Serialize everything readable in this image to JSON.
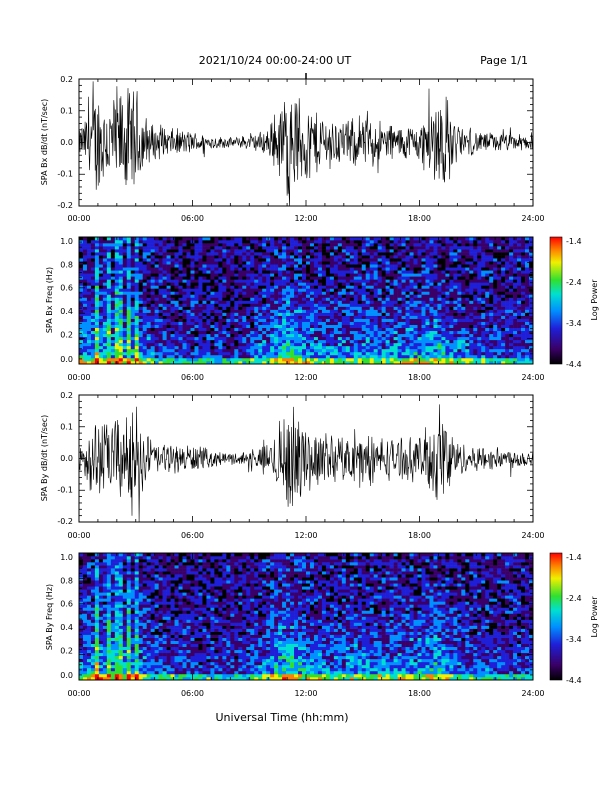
{
  "header": {
    "date_range": "2021/10/24  00:00-24:00 UT",
    "page": "Page 1/1"
  },
  "x_axis_title": "Universal Time (hh:mm)",
  "colors": {
    "trace": "#000000",
    "colormap": [
      "#000000",
      "#3a0068",
      "#1f1fd8",
      "#0090ff",
      "#00e0d0",
      "#30e030",
      "#f0f000",
      "#ff8000",
      "#ff0000"
    ]
  },
  "chart_data": [
    {
      "type": "line",
      "ylabel": "SPA Bx dB/dt (nT/sec)",
      "xlim_hours": [
        0,
        24
      ],
      "ylim": [
        -0.2,
        0.2
      ],
      "x_tick_labels": [
        "00:00",
        "06:00",
        "12:00",
        "18:00",
        "24:00"
      ],
      "y_tick_labels": [
        "0.2",
        "0.1",
        "0.0",
        "-0.1",
        "-0.2"
      ],
      "envelope": {
        "hours": [
          0,
          0.5,
          1,
          1.5,
          2,
          2.5,
          3,
          3.5,
          4,
          5,
          6,
          7,
          8,
          9,
          10,
          10.5,
          11,
          11.5,
          12,
          13,
          14,
          15,
          16,
          17,
          18,
          18.5,
          19,
          19.5,
          20,
          21,
          22,
          23,
          24
        ],
        "amplitude": [
          0.04,
          0.12,
          0.2,
          0.16,
          0.2,
          0.19,
          0.2,
          0.1,
          0.06,
          0.05,
          0.04,
          0.025,
          0.018,
          0.025,
          0.05,
          0.12,
          0.2,
          0.18,
          0.14,
          0.1,
          0.08,
          0.09,
          0.08,
          0.06,
          0.07,
          0.12,
          0.2,
          0.16,
          0.06,
          0.04,
          0.035,
          0.03,
          0.03
        ]
      }
    },
    {
      "type": "heatmap",
      "ylabel": "SPA Bx Freq (Hz)",
      "xlim_hours": [
        0,
        24
      ],
      "ylim": [
        0.0,
        1.0
      ],
      "x_tick_labels": [
        "00:00",
        "06:00",
        "12:00",
        "18:00",
        "24:00"
      ],
      "y_tick_labels": [
        "1.0",
        "0.8",
        "0.6",
        "0.4",
        "0.2",
        "0.0"
      ],
      "colorbar": {
        "label": "Log Power",
        "range": [
          -4.4,
          -1.4
        ],
        "tick_labels": [
          "-1.4",
          "-2.4",
          "-3.4",
          "-4.4"
        ]
      },
      "activity": {
        "hours": [
          0,
          1,
          2,
          3,
          4,
          6,
          8,
          9,
          10,
          11,
          12,
          13,
          14,
          15,
          16,
          17,
          18,
          19,
          20,
          22,
          24
        ],
        "level": [
          0.55,
          0.7,
          0.65,
          0.6,
          0.35,
          0.25,
          0.2,
          0.3,
          0.55,
          0.85,
          0.6,
          0.45,
          0.5,
          0.55,
          0.5,
          0.55,
          0.6,
          0.7,
          0.45,
          0.3,
          0.25
        ]
      }
    },
    {
      "type": "line",
      "ylabel": "SPA By dB/dt (nT/sec)",
      "xlim_hours": [
        0,
        24
      ],
      "ylim": [
        -0.2,
        0.2
      ],
      "x_tick_labels": [
        "00:00",
        "06:00",
        "12:00",
        "18:00",
        "24:00"
      ],
      "y_tick_labels": [
        "0.2",
        "0.1",
        "0.0",
        "-0.1",
        "-0.2"
      ],
      "envelope": {
        "hours": [
          0,
          0.5,
          1,
          1.5,
          2,
          2.5,
          3,
          3.5,
          4,
          5,
          6,
          7,
          8,
          9,
          10,
          10.5,
          11,
          11.5,
          12,
          13,
          14,
          15,
          16,
          17,
          18,
          18.5,
          19,
          19.5,
          20,
          21,
          22,
          23,
          24
        ],
        "amplitude": [
          0.06,
          0.1,
          0.16,
          0.12,
          0.17,
          0.14,
          0.2,
          0.1,
          0.06,
          0.05,
          0.05,
          0.03,
          0.02,
          0.03,
          0.05,
          0.12,
          0.2,
          0.16,
          0.12,
          0.09,
          0.08,
          0.09,
          0.08,
          0.07,
          0.08,
          0.12,
          0.18,
          0.15,
          0.06,
          0.045,
          0.04,
          0.035,
          0.03
        ]
      }
    },
    {
      "type": "heatmap",
      "ylabel": "SPA By Freq (Hz)",
      "xlim_hours": [
        0,
        24
      ],
      "ylim": [
        0.0,
        1.0
      ],
      "x_tick_labels": [
        "00:00",
        "06:00",
        "12:00",
        "18:00",
        "24:00"
      ],
      "y_tick_labels": [
        "1.0",
        "0.8",
        "0.6",
        "0.4",
        "0.2",
        "0.0"
      ],
      "colorbar": {
        "label": "Log Power",
        "range": [
          -4.4,
          -1.4
        ],
        "tick_labels": [
          "-1.4",
          "-2.4",
          "-3.4",
          "-4.4"
        ]
      },
      "activity": {
        "hours": [
          0,
          1,
          2,
          3,
          4,
          6,
          8,
          9,
          10,
          11,
          12,
          13,
          14,
          15,
          16,
          17,
          18,
          19,
          20,
          22,
          24
        ],
        "level": [
          0.55,
          0.7,
          0.65,
          0.6,
          0.35,
          0.25,
          0.2,
          0.3,
          0.55,
          0.85,
          0.6,
          0.45,
          0.5,
          0.55,
          0.5,
          0.55,
          0.6,
          0.7,
          0.45,
          0.3,
          0.25
        ]
      }
    }
  ]
}
